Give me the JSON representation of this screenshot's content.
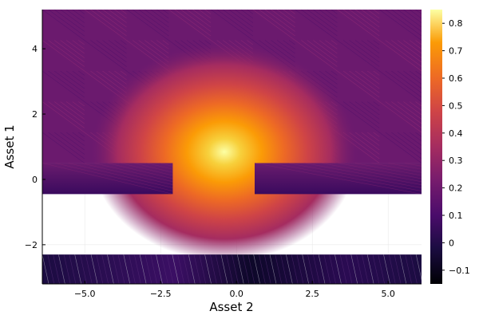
{
  "chart_data": {
    "type": "heatmap",
    "title": "",
    "xlabel": "Asset 2",
    "ylabel": "Asset 1",
    "xlim": [
      -6.4,
      6.1
    ],
    "ylim": [
      -3.2,
      5.2
    ],
    "xticks": [
      {
        "value": -5.0,
        "label": "−5.0"
      },
      {
        "value": -2.5,
        "label": "−2.5"
      },
      {
        "value": 0.0,
        "label": "0.0"
      },
      {
        "value": 2.5,
        "label": "2.5"
      },
      {
        "value": 5.0,
        "label": "5.0"
      }
    ],
    "yticks": [
      {
        "value": -2,
        "label": "−2"
      },
      {
        "value": 0,
        "label": "0"
      },
      {
        "value": 2,
        "label": "2"
      },
      {
        "value": 4,
        "label": "4"
      }
    ],
    "colorbar": {
      "colormap": "inferno",
      "range": [
        -0.15,
        0.85
      ],
      "ticks": [
        {
          "value": -0.1,
          "label": "−0.1"
        },
        {
          "value": 0.0,
          "label": "0"
        },
        {
          "value": 0.1,
          "label": "0.1"
        },
        {
          "value": 0.2,
          "label": "0.2"
        },
        {
          "value": 0.3,
          "label": "0.3"
        },
        {
          "value": 0.4,
          "label": "0.4"
        },
        {
          "value": 0.5,
          "label": "0.5"
        },
        {
          "value": 0.6,
          "label": "0.6"
        },
        {
          "value": 0.7,
          "label": "0.7"
        },
        {
          "value": 0.8,
          "label": "0.8"
        }
      ]
    },
    "peak": {
      "x": -0.4,
      "y": 0.6,
      "value": 0.85
    },
    "regions": [
      {
        "name": "upper",
        "x": [
          -6.4,
          6.1
        ],
        "y": [
          0.5,
          5.2
        ],
        "value_range": [
          0.15,
          0.85
        ]
      },
      {
        "name": "middle",
        "x": [
          -6.4,
          -2.1
        ],
        "y": [
          -0.45,
          0.5
        ],
        "value": 0.1
      },
      {
        "name": "middle",
        "x": [
          0.6,
          6.1
        ],
        "y": [
          -0.45,
          0.5
        ],
        "value": 0.1
      },
      {
        "name": "lower",
        "x": [
          -6.4,
          6.1
        ],
        "y": [
          -3.2,
          -2.3
        ],
        "value_range": [
          -0.15,
          0.05
        ]
      }
    ],
    "grid": true
  }
}
